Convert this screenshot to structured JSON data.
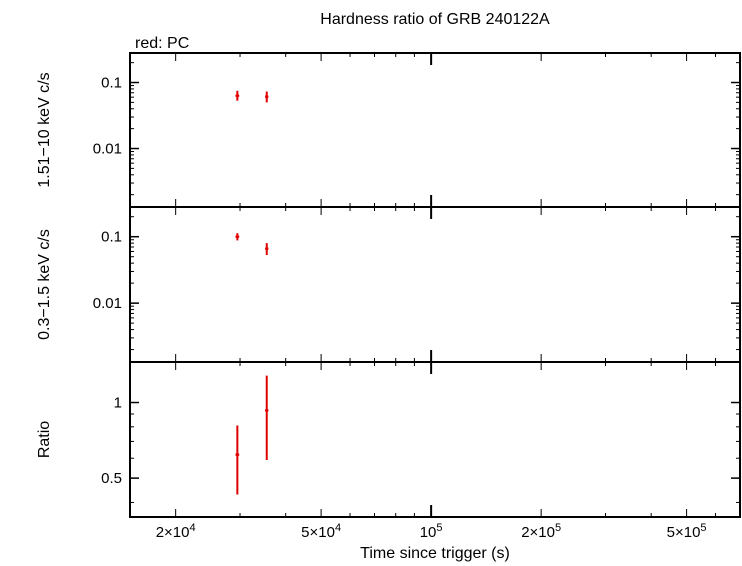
{
  "chart_data": {
    "type": "scatter",
    "title": "Hardness ratio of GRB 240122A",
    "legend": "red: PC",
    "xlabel": "Time since trigger (s)",
    "xscale": "log",
    "xlim": [
      15000,
      700000
    ],
    "x_ticks": [
      {
        "value": 20000,
        "mantissa": "2×10",
        "exp": "4"
      },
      {
        "value": 50000,
        "mantissa": "5×10",
        "exp": "4"
      },
      {
        "value": 100000,
        "mantissa": "10",
        "exp": "5"
      },
      {
        "value": 200000,
        "mantissa": "2×10",
        "exp": "5"
      },
      {
        "value": 500000,
        "mantissa": "5×10",
        "exp": "5"
      }
    ],
    "series_color": "#e00000",
    "panels": [
      {
        "name": "hard",
        "ylabel": "1.51−10 keV c/s",
        "yscale": "log",
        "ylim": [
          0.0013,
          0.28
        ],
        "y_ticks": [
          {
            "value": 0.01,
            "label": "0.01"
          },
          {
            "value": 0.1,
            "label": "0.1"
          }
        ],
        "points": [
          {
            "x": 29500,
            "xerr": 350,
            "y": 0.063,
            "ylo": 0.053,
            "yhi": 0.075
          },
          {
            "x": 35500,
            "xerr": 350,
            "y": 0.061,
            "ylo": 0.05,
            "yhi": 0.073
          }
        ]
      },
      {
        "name": "soft",
        "ylabel": "0.3−1.5 keV c/s",
        "yscale": "log",
        "ylim": [
          0.0013,
          0.28
        ],
        "y_ticks": [
          {
            "value": 0.01,
            "label": "0.01"
          },
          {
            "value": 0.1,
            "label": "0.1"
          }
        ],
        "points": [
          {
            "x": 29500,
            "xerr": 350,
            "y": 0.1,
            "ylo": 0.088,
            "yhi": 0.113
          },
          {
            "x": 35500,
            "xerr": 350,
            "y": 0.066,
            "ylo": 0.053,
            "yhi": 0.08
          }
        ]
      },
      {
        "name": "ratio",
        "ylabel": "Ratio",
        "yscale": "log",
        "ylim": [
          0.35,
          1.45
        ],
        "y_ticks": [
          {
            "value": 0.5,
            "label": "0.5"
          },
          {
            "value": 1,
            "label": "1"
          }
        ],
        "points": [
          {
            "x": 29500,
            "xerr": 350,
            "y": 0.62,
            "ylo": 0.43,
            "yhi": 0.81
          },
          {
            "x": 35500,
            "xerr": 350,
            "y": 0.93,
            "ylo": 0.59,
            "yhi": 1.28
          }
        ]
      }
    ]
  }
}
